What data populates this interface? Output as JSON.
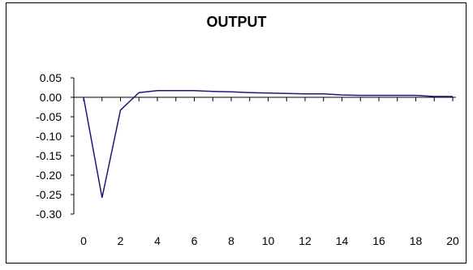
{
  "chart_data": {
    "type": "line",
    "title": "OUTPUT",
    "xlabel": "",
    "ylabel": "",
    "x": [
      0,
      1,
      2,
      3,
      4,
      5,
      6,
      7,
      8,
      9,
      10,
      11,
      12,
      13,
      14,
      15,
      16,
      17,
      18,
      19,
      20
    ],
    "x_tick_labels": [
      "0",
      "2",
      "4",
      "6",
      "8",
      "10",
      "12",
      "14",
      "16",
      "18",
      "20"
    ],
    "x_tick_values": [
      0,
      2,
      4,
      6,
      8,
      10,
      12,
      14,
      16,
      18,
      20
    ],
    "y_tick_labels": [
      "0.05",
      "0.00",
      "-0.05",
      "-0.10",
      "-0.15",
      "-0.20",
      "-0.25",
      "-0.30"
    ],
    "y_tick_values": [
      0.05,
      0.0,
      -0.05,
      -0.1,
      -0.15,
      -0.2,
      -0.25,
      -0.3
    ],
    "ylim": [
      -0.3,
      0.05
    ],
    "xlim": [
      0,
      20
    ],
    "grid": false,
    "series": [
      {
        "values": [
          0.0,
          -0.258,
          -0.033,
          0.012,
          0.017,
          0.017,
          0.017,
          0.015,
          0.014,
          0.012,
          0.011,
          0.01,
          0.009,
          0.009,
          0.006,
          0.005,
          0.005,
          0.005,
          0.005,
          0.002,
          0.002
        ],
        "color": "#1a1a7a"
      }
    ]
  }
}
